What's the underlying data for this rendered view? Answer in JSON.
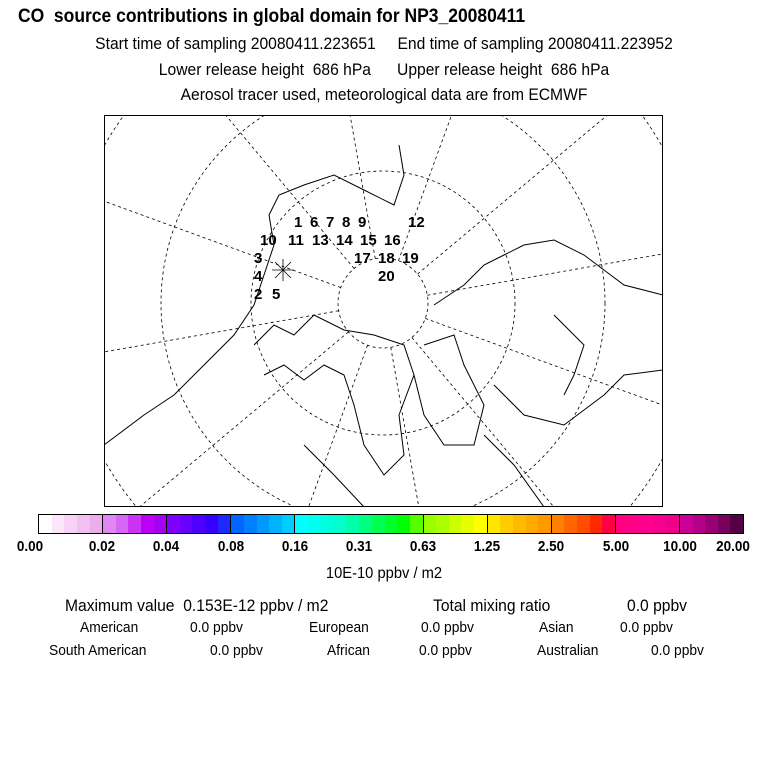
{
  "header": {
    "title": "CO  source contributions in global domain for NP3_20080411",
    "start": "Start time of sampling 20080411.223651",
    "end": "End time of sampling 20080411.223952",
    "lower": "Lower release height  686 hPa",
    "upper": "Upper release height  686 hPa",
    "tracer": "Aerosol tracer used, meteorological data are from ECMWF"
  },
  "map": {
    "trajectory_labels": [
      "1",
      "2",
      "3",
      "4",
      "5",
      "6",
      "7",
      "8",
      "9",
      "10",
      "11",
      "12",
      "13",
      "14",
      "15",
      "16",
      "17",
      "18",
      "19",
      "20"
    ]
  },
  "colorbar": {
    "ticks": [
      "0.00",
      "0.02",
      "0.04",
      "0.08",
      "0.16",
      "0.31",
      "0.63",
      "1.25",
      "2.50",
      "5.00",
      "10.00",
      "20.00"
    ],
    "unit": "10E-10 ppbv / m2",
    "colors": [
      [
        "#ffffff",
        "#fbe6fb",
        "#f6d3f6",
        "#f1c0f1",
        "#ecadec"
      ],
      [
        "#df88f2",
        "#d866f4",
        "#cc33f5",
        "#bb00f5",
        "#a600f0"
      ],
      [
        "#8000ff",
        "#6a00ff",
        "#5000ff",
        "#3500ff",
        "#1c2aff"
      ],
      [
        "#0066ff",
        "#0080ff",
        "#0099ff",
        "#00b3ff",
        "#00ccff"
      ],
      [
        "#00ffff",
        "#00ffee",
        "#00ffdd",
        "#00ffcc",
        "#00ffaa"
      ],
      [
        "#00ff80",
        "#00ff55",
        "#00ff2a",
        "#00ff00",
        "#55ff00"
      ],
      [
        "#99ff00",
        "#aaff00",
        "#ccff00",
        "#e6ff00",
        "#ffff00"
      ],
      [
        "#ffe600",
        "#ffcc00",
        "#ffbb00",
        "#ffaa00",
        "#ff9900"
      ],
      [
        "#ff8000",
        "#ff6600",
        "#ff4d00",
        "#ff2a00",
        "#ff0044"
      ],
      [
        "#ff0080",
        "#ff0088",
        "#ff0090",
        "#f70090",
        "#ee0088"
      ],
      [
        "#cc0099",
        "#b30088",
        "#990077",
        "#7a005f",
        "#550044"
      ]
    ]
  },
  "stats": {
    "max": "Maximum value  0.153E-12 ppbv / m2",
    "total_label": "Total mixing ratio",
    "total": "0.0 ppbv",
    "american_label": "American",
    "american": "0.0 ppbv",
    "european_label": "European",
    "european": "0.0 ppbv",
    "asian_label": "Asian",
    "asian": "0.0 ppbv",
    "samerican_label": "South American",
    "samerican": "0.0 ppbv",
    "african_label": "African",
    "african": "0.0 ppbv",
    "australian_label": "Australian",
    "australian": "0.0 ppbv"
  }
}
